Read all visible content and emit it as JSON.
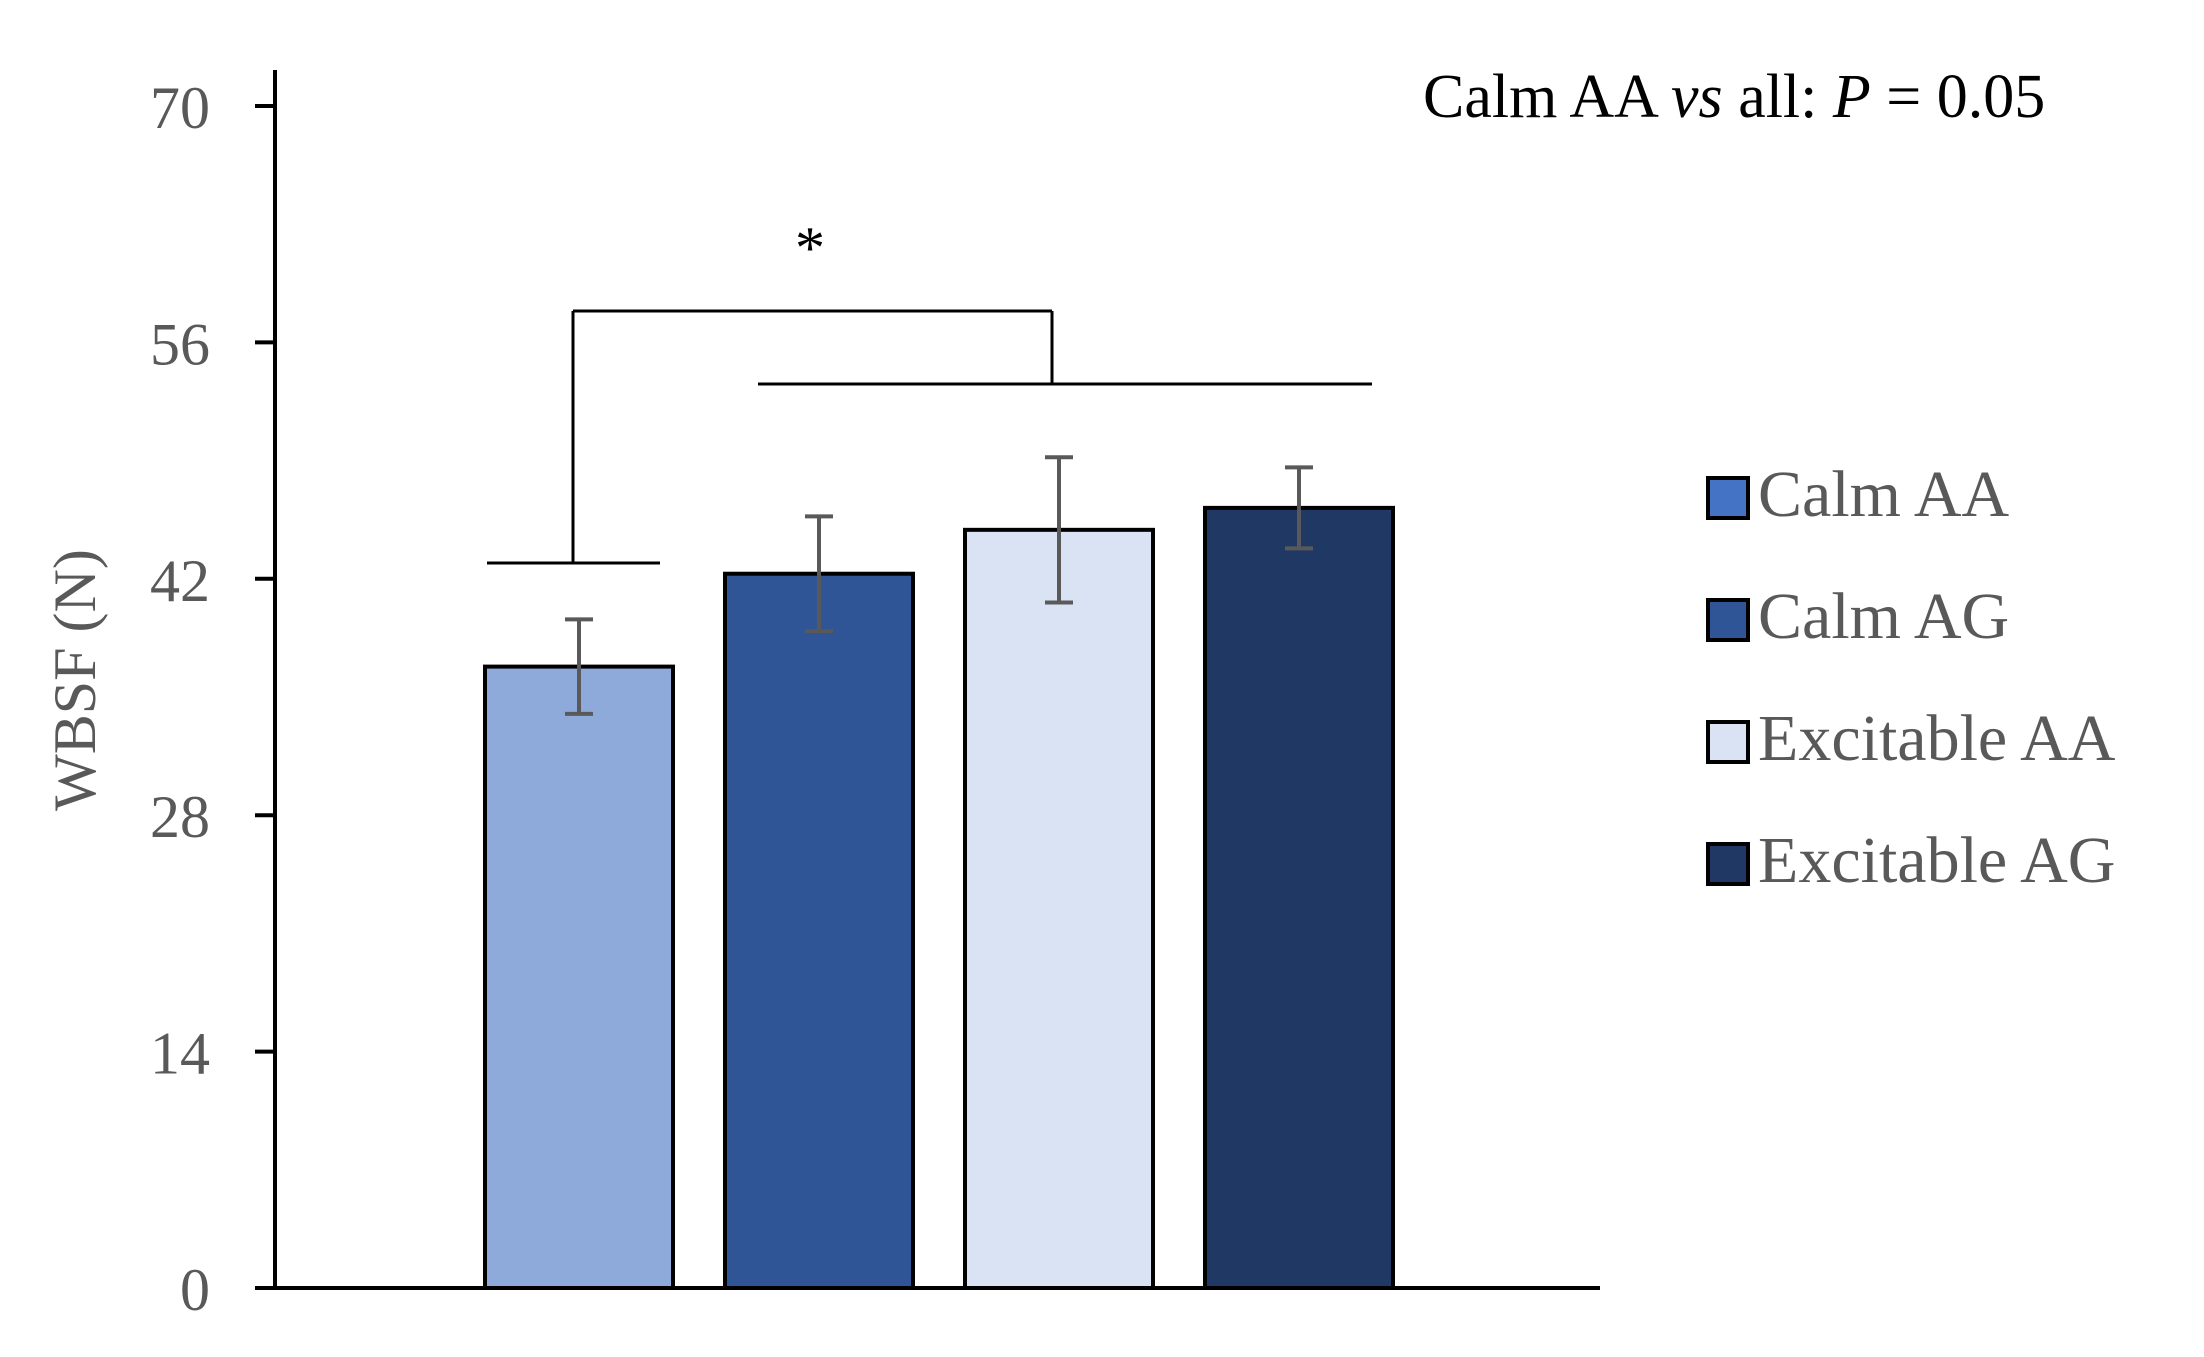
{
  "chart_data": {
    "type": "bar",
    "title": "",
    "xlabel": "",
    "ylabel": "WBSF (N)",
    "ylim": [
      0,
      70
    ],
    "yticks": [
      0,
      14,
      28,
      42,
      56,
      70
    ],
    "grid": false,
    "legend_position": "right",
    "series": [
      {
        "name": "Calm AA",
        "value": 36.8,
        "error": 2.8,
        "color": "#8EAADB",
        "legend_color": "#4472C4"
      },
      {
        "name": "Calm AG",
        "value": 42.3,
        "error": 3.4,
        "color": "#2F5597",
        "legend_color": "#2F5597"
      },
      {
        "name": "Excitable AA",
        "value": 44.9,
        "error": 4.3,
        "color": "#DAE3F3",
        "legend_color": "#DAE3F3"
      },
      {
        "name": "Excitable AG",
        "value": 46.2,
        "error": 2.4,
        "color": "#203864",
        "legend_color": "#203864"
      }
    ],
    "annotations": {
      "pvalue_prefix": "Calm AA ",
      "pvalue_vs": "vs",
      "pvalue_mid": " all: ",
      "pvalue_p": "P",
      "pvalue_value": " = 0.05",
      "significance_marker": "*"
    }
  }
}
